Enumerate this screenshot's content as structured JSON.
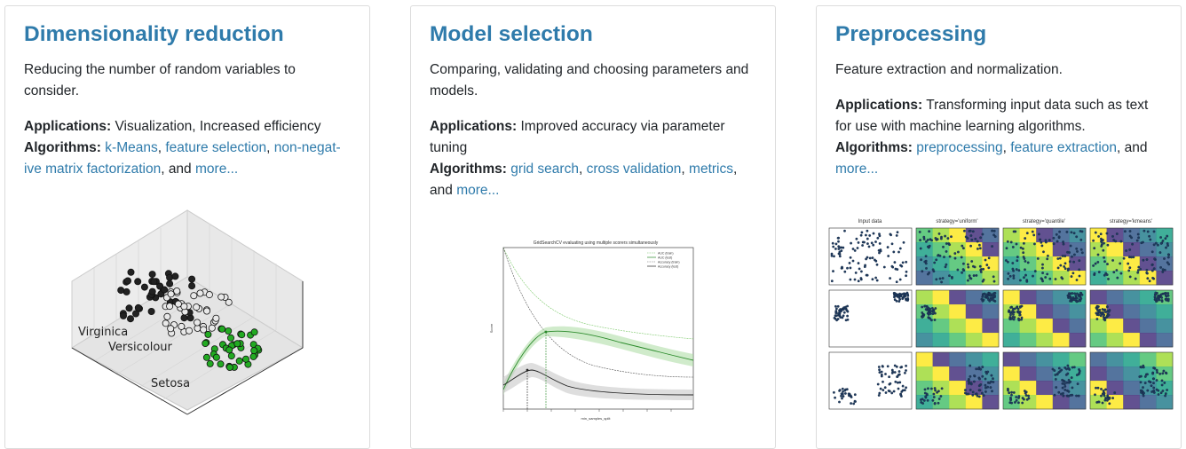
{
  "cards": [
    {
      "title": "Dimensionality reduction",
      "description": "Reducing the number of random variables to consider.",
      "applications_label": "Applications:",
      "applications": "Visualization, Increased efficiency",
      "algorithms_label": "Algorithms:",
      "links": [
        "k-Means",
        "feature selection",
        "non-negat-ive matrix factorization"
      ],
      "more": "more...",
      "figure": {
        "labels": [
          "Virginica",
          "Versicolour",
          "Setosa"
        ]
      }
    },
    {
      "title": "Model selection",
      "description": "Comparing, validating and choosing parameters and models.",
      "applications_label": "Applications:",
      "applications": "Improved accuracy via parameter tuning",
      "algorithms_label": "Algorithms:",
      "links": [
        "grid search",
        "cross validation",
        "metrics"
      ],
      "more": "more...",
      "figure": {
        "title": "GridSearchCV evaluating using multiple scorers simultaneously",
        "xlabel": "min_samples_split",
        "ylabel": "Score",
        "legend": [
          "AUC (train)",
          "AUC (test)",
          "Accuracy (train)",
          "Accuracy (test)"
        ]
      }
    },
    {
      "title": "Preprocessing",
      "description": "Feature extraction and normalization.",
      "applications_label": "Applications:",
      "applications": "Transforming input data such as text for use with machine learning algorithms.",
      "algorithms_label": "Algorithms:",
      "links": [
        "preprocessing",
        "feature extraction"
      ],
      "more": "more...",
      "figure": {
        "column_titles": [
          "Input data",
          "strategy='uniform'",
          "strategy='quantile'",
          "strategy='kmeans'"
        ]
      }
    }
  ],
  "connector": ", and",
  "sep": ", "
}
